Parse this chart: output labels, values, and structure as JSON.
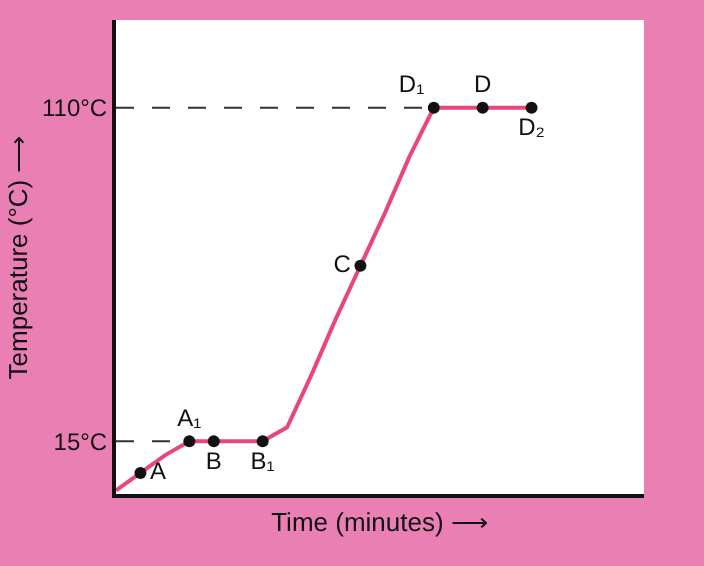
{
  "chart_data": {
    "type": "line",
    "xlabel": "Time (minutes) ⟶",
    "ylabel": "Temperature (°C) ⟶",
    "categories": [
      null,
      null,
      null,
      null,
      null,
      null,
      null,
      null,
      null,
      null,
      null,
      null,
      null,
      null,
      null,
      null,
      null,
      null
    ],
    "ylim": [
      0,
      135
    ],
    "yticks": [
      {
        "value": 15,
        "label": "15°C"
      },
      {
        "value": 110,
        "label": "110°C"
      }
    ],
    "grid": false,
    "series": [
      {
        "color": "#e8467c",
        "marker": "none",
        "values": [
          1,
          6,
          11,
          15,
          15,
          15,
          15,
          19,
          34,
          50,
          65,
          80,
          96,
          110,
          110,
          110,
          110,
          110
        ]
      },
      {
        "type": "scatter",
        "color": "#111111",
        "marker": "circle",
        "values": [
          null,
          6,
          null,
          15,
          15,
          null,
          15,
          null,
          null,
          null,
          65,
          null,
          null,
          110,
          null,
          110,
          null,
          110
        ],
        "value_labels": [
          null,
          "A",
          null,
          "A₁",
          "B",
          null,
          "B₁",
          null,
          null,
          null,
          "C",
          null,
          null,
          "D₁",
          null,
          "D",
          null,
          "D₂"
        ]
      }
    ],
    "ref_lines": [
      {
        "axis": "y",
        "value": 15,
        "color": "#333333",
        "line_style": "dashed"
      },
      {
        "axis": "y",
        "value": 110,
        "color": "#333333",
        "line_style": "dashed"
      }
    ]
  }
}
